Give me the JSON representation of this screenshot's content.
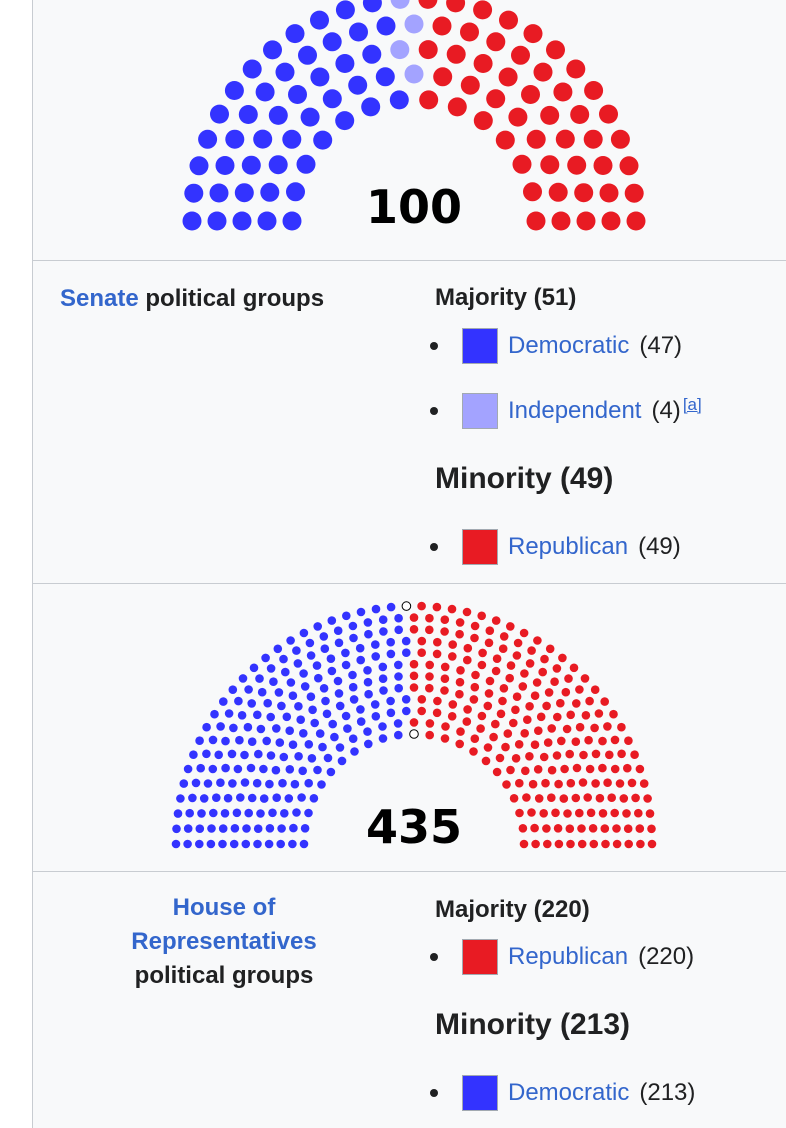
{
  "colors": {
    "democratic": "#3333ff",
    "independent": "#a3a3ff",
    "republican": "#e81b23",
    "link": "#3366cc"
  },
  "senate": {
    "total": "100",
    "label_link": "Senate",
    "label_rest": " political groups",
    "seats": {
      "democratic": 47,
      "independent": 4,
      "republican": 49
    },
    "majority_heading": "Majority (51)",
    "minority_heading": "Minority (49)",
    "parties": [
      {
        "name": "Democratic",
        "count": "(47)",
        "note": ""
      },
      {
        "name": "Independent",
        "count": "(4)",
        "note": "[a]"
      },
      {
        "name": "Republican",
        "count": "(49)",
        "note": ""
      }
    ]
  },
  "house": {
    "total": "435",
    "label_link_line1": "House of",
    "label_link_line2": "Representatives",
    "label_rest": "political groups",
    "seats": {
      "democratic": 213,
      "vacant": 2,
      "republican": 220
    },
    "majority_heading": "Majority (220)",
    "minority_heading": "Minority (213)",
    "parties": [
      {
        "name": "Republican",
        "count": "(220)",
        "note": ""
      },
      {
        "name": "Democratic",
        "count": "(213)",
        "note": ""
      }
    ]
  }
}
